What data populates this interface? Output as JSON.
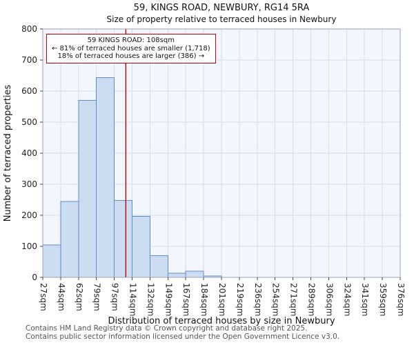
{
  "chart_data": {
    "type": "bar",
    "title": "59, KINGS ROAD, NEWBURY, RG14 5RA",
    "subtitle": "Size of property relative to terraced houses in Newbury",
    "xlabel": "Distribution of terraced houses by size in Newbury",
    "ylabel": "Number of terraced properties",
    "ylim": [
      0,
      800
    ],
    "y_ticks": [
      0,
      100,
      200,
      300,
      400,
      500,
      600,
      700,
      800
    ],
    "bin_edges_sqm": [
      27,
      44,
      62,
      79,
      97,
      114,
      132,
      149,
      167,
      184,
      201,
      219,
      236,
      254,
      271,
      289,
      306,
      324,
      341,
      359,
      376
    ],
    "x_tick_labels": [
      "27sqm",
      "44sqm",
      "62sqm",
      "79sqm",
      "97sqm",
      "114sqm",
      "132sqm",
      "149sqm",
      "167sqm",
      "184sqm",
      "201sqm",
      "219sqm",
      "236sqm",
      "254sqm",
      "271sqm",
      "289sqm",
      "306sqm",
      "324sqm",
      "341sqm",
      "359sqm",
      "376sqm"
    ],
    "values": [
      105,
      245,
      570,
      643,
      248,
      197,
      70,
      13,
      20,
      5,
      0,
      0,
      0,
      0,
      0,
      0,
      0,
      0,
      0,
      0
    ],
    "grid": true,
    "legend_position": "none",
    "marker": {
      "value_sqm": 108,
      "label": "59 KINGS ROAD: 108sqm",
      "smaller_text": "← 81% of terraced houses are smaller (1,718)",
      "larger_text": "18% of terraced houses are larger (386) →"
    },
    "colors": {
      "bar_fill": "#cdddf1",
      "bar_stroke": "#5b8bc9",
      "marker_line": "#c00000",
      "annotation_border": "#cc0000",
      "grid": "#d3ddef",
      "plot_bg": "#f3f6fc"
    }
  },
  "footer": {
    "line1": "Contains HM Land Registry data © Crown copyright and database right 2025.",
    "line2": "Contains public sector information licensed under the Open Government Licence v3.0."
  }
}
